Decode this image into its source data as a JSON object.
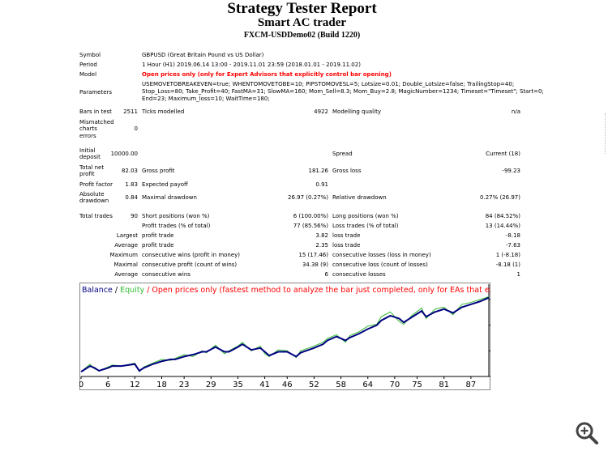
{
  "header": {
    "title": "Strategy Tester Report",
    "ea_name": "Smart AC trader",
    "server": "FXCM-USDDemo02 (Build 1220)"
  },
  "report": {
    "symbol_label": "Symbol",
    "symbol_value": "GBPUSD (Great Britain Pound vs US Dollar)",
    "period_label": "Period",
    "period_value": "1 Hour (H1) 2019.06.14 13:00 - 2019.11.01 23:59 (2018.01.01 - 2019.11.02)",
    "model_label": "Model",
    "model_value": "Open prices only (only for Expert Advisors that explicitly control bar opening)",
    "parameters_label": "Parameters",
    "parameters_lines": [
      "USEMOVETOBREAKEVEN=true; WHENTOMOVETOBE=10; PIPSTOMOVESL=5; Lotsize=0.01; Double_Lotsize=false; TrailingStop=40;",
      "Stop_Loss=80; Take_Profit=40; FastMA=31; SlowMA=160; Mom_Sell=8.3; Mom_Buy=2.8; MagicNumber=1234; Timeset=\"Timeset\"; Start=0;",
      "End=23; Maximum_loss=10; WaitTime=180;"
    ]
  },
  "stats": {
    "bars_label": "Bars in test",
    "bars_value": "2511",
    "ticks_label": "Ticks modelled",
    "ticks_value": "4922",
    "quality_label": "Modelling quality",
    "quality_value": "n/a",
    "mismatch_label": [
      "Mismatched",
      "charts",
      "errors"
    ],
    "mismatch_value": "0",
    "deposit_label": [
      "Initial",
      "deposit"
    ],
    "deposit_value": "10000.00",
    "spread_label": "Spread",
    "spread_value": "Current (18)",
    "netprofit_label": [
      "Total net",
      "profit"
    ],
    "netprofit_value": "82.03",
    "grossprofit_label": "Gross profit",
    "grossprofit_value": "181.26",
    "grossloss_label": "Gross loss",
    "grossloss_value": "-99.23",
    "pf_label": "Profit factor",
    "pf_value": "1.83",
    "payoff_label": "Expected payoff",
    "payoff_value": "0.91",
    "absdd_label": [
      "Absolute",
      "drawdown"
    ],
    "absdd_value": "0.84",
    "maxdd_label": "Maximal drawdown",
    "maxdd_value": "26.97 (0.27%)",
    "reldd_label": "Relative drawdown",
    "reldd_value": "0.27% (26.97)",
    "trades_label": "Total trades",
    "trades_value": "90",
    "short_label": "Short positions (won %)",
    "short_value": "6 (100.00%)",
    "long_label": "Long positions (won %)",
    "long_value": "84 (84.52%)",
    "ptrades_label": "Profit trades (% of total)",
    "ptrades_value": "77 (85.56%)",
    "ltrades_label": "Loss trades (% of total)",
    "ltrades_value": "13 (14.44%)",
    "largest_label": "Largest",
    "lp_label": "profit trade",
    "lp_value": "3.82",
    "ll_label": "loss trade",
    "ll_value": "-8.18",
    "average_label": "Average",
    "ap_label": "profit trade",
    "ap_value": "2.35",
    "al_label": "loss trade",
    "al_value": "-7.63",
    "maximum_label": "Maximum",
    "mcw_label": "consecutive wins (profit in money)",
    "mcw_value": "15 (17.46)",
    "mcl_label": "consecutive losses (loss in money)",
    "mcl_value": "1 (-8.18)",
    "maximal_label": "Maximal",
    "mcp_label": "consecutive profit (count of wins)",
    "mcp_value": "34.38 (9)",
    "mcll_label": "consecutive loss (count of losses)",
    "mcll_value": "-8.18 (1)",
    "average2_label": "Average",
    "acw_label": "consecutive wins",
    "acw_value": "6",
    "acl_label": "consecutive losses",
    "acl_value": "1"
  },
  "chart_data": {
    "type": "line",
    "legend_balance": "Balance",
    "legend_sep": " / ",
    "legend_equity": "Equity",
    "legend_desc": " / Open prices only (fastest method to analyze the bar just completed, only for EAs that explicitly control b",
    "colors": {
      "balance": "#000080",
      "equity": "#33bb33",
      "desc": "#ff0000"
    },
    "x_ticks": [
      "0",
      "6",
      "12",
      "18",
      "23",
      "29",
      "35",
      "41",
      "46",
      "52",
      "58",
      "64",
      "70",
      "75",
      "81",
      "87"
    ],
    "y_ticks": [
      "10076",
      "10049",
      "10022",
      "9995"
    ],
    "ylim": [
      9995,
      10082
    ],
    "xlim": [
      0,
      91
    ],
    "series": [
      {
        "name": "Balance",
        "values": [
          [
            0,
            10000
          ],
          [
            2,
            10006
          ],
          [
            3,
            10004
          ],
          [
            4,
            10001
          ],
          [
            6,
            10004
          ],
          [
            7,
            10006
          ],
          [
            9,
            10006
          ],
          [
            12,
            10008
          ],
          [
            13,
            10001
          ],
          [
            14,
            10004
          ],
          [
            16,
            10008
          ],
          [
            18,
            10011
          ],
          [
            20,
            10013
          ],
          [
            21,
            10013
          ],
          [
            23,
            10016
          ],
          [
            25,
            10018
          ],
          [
            27,
            10021
          ],
          [
            28,
            10021
          ],
          [
            30,
            10026
          ],
          [
            32,
            10021
          ],
          [
            33,
            10021
          ],
          [
            35,
            10026
          ],
          [
            36,
            10029
          ],
          [
            38,
            10023
          ],
          [
            40,
            10025
          ],
          [
            41,
            10021
          ],
          [
            42,
            10017
          ],
          [
            44,
            10021
          ],
          [
            46,
            10021
          ],
          [
            48,
            10016
          ],
          [
            49,
            10020
          ],
          [
            52,
            10025
          ],
          [
            54,
            10029
          ],
          [
            55,
            10033
          ],
          [
            57,
            10037
          ],
          [
            59,
            10033
          ],
          [
            60,
            10036
          ],
          [
            62,
            10040
          ],
          [
            64,
            10045
          ],
          [
            66,
            10049
          ],
          [
            67,
            10054
          ],
          [
            69,
            10059
          ],
          [
            71,
            10056
          ],
          [
            72,
            10052
          ],
          [
            74,
            10058
          ],
          [
            76,
            10064
          ],
          [
            77,
            10058
          ],
          [
            79,
            10063
          ],
          [
            81,
            10066
          ],
          [
            83,
            10062
          ],
          [
            85,
            10068
          ],
          [
            87,
            10071
          ],
          [
            89,
            10074
          ],
          [
            91,
            10078
          ]
        ]
      },
      {
        "name": "Equity",
        "values": [
          [
            0,
            10000
          ],
          [
            2,
            10008
          ],
          [
            3,
            10003
          ],
          [
            4,
            10001
          ],
          [
            6,
            10005
          ],
          [
            7,
            10007
          ],
          [
            9,
            10006
          ],
          [
            12,
            10009
          ],
          [
            13,
            10000
          ],
          [
            14,
            10005
          ],
          [
            16,
            10009
          ],
          [
            18,
            10013
          ],
          [
            20,
            10012
          ],
          [
            21,
            10014
          ],
          [
            23,
            10018
          ],
          [
            25,
            10016
          ],
          [
            27,
            10022
          ],
          [
            28,
            10020
          ],
          [
            30,
            10028
          ],
          [
            32,
            10019
          ],
          [
            33,
            10022
          ],
          [
            35,
            10027
          ],
          [
            36,
            10031
          ],
          [
            38,
            10022
          ],
          [
            40,
            10027
          ],
          [
            41,
            10019
          ],
          [
            42,
            10016
          ],
          [
            44,
            10023
          ],
          [
            46,
            10022
          ],
          [
            48,
            10015
          ],
          [
            49,
            10022
          ],
          [
            52,
            10027
          ],
          [
            54,
            10031
          ],
          [
            55,
            10035
          ],
          [
            57,
            10039
          ],
          [
            59,
            10031
          ],
          [
            60,
            10038
          ],
          [
            62,
            10042
          ],
          [
            64,
            10048
          ],
          [
            66,
            10050
          ],
          [
            67,
            10058
          ],
          [
            69,
            10063
          ],
          [
            71,
            10053
          ],
          [
            72,
            10050
          ],
          [
            74,
            10060
          ],
          [
            76,
            10067
          ],
          [
            77,
            10056
          ],
          [
            79,
            10066
          ],
          [
            81,
            10068
          ],
          [
            83,
            10060
          ],
          [
            85,
            10071
          ],
          [
            87,
            10073
          ],
          [
            89,
            10076
          ],
          [
            91,
            10079
          ]
        ]
      }
    ]
  }
}
